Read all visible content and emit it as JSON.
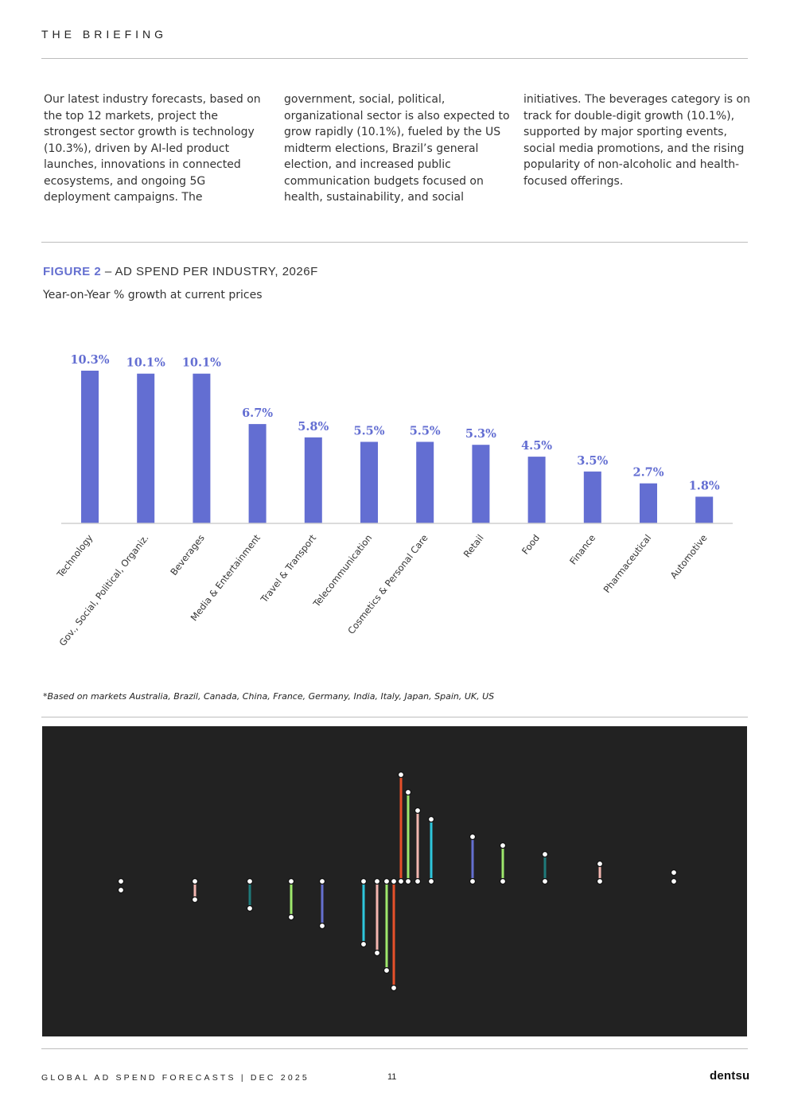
{
  "header": {
    "title": "THE BRIEFING"
  },
  "body_text": {
    "col1": "Our latest industry forecasts, based on the top 12 markets, project the strongest sector growth is technology (10.3%), driven by AI-led product launches, innovations in connected ecosystems, and ongoing 5G deployment campaigns. The",
    "col2": "government, social, political, organizational sector is also expected to grow rapidly (10.1%), fueled by the US midterm elections, Brazil’s general election, and increased public communication budgets focused on health, sustainability, and social",
    "col3": "initiatives. The beverages category is on track for double-digit growth (10.1%), supported by major sporting events, social media promotions, and the rising popularity of non-alcoholic and health-focused offerings."
  },
  "figure": {
    "label": "FIGURE 2",
    "title_rest": " – AD SPEND PER INDUSTRY, 2026F",
    "subtitle": "Year-on-Year % growth at current prices",
    "footnote": "*Based on markets Australia, Brazil, Canada, China, France, Germany, India, Italy, Japan, Spain, UK, US"
  },
  "chart_data": {
    "type": "bar",
    "title": "AD SPEND PER INDUSTRY, 2026F",
    "subtitle": "Year-on-Year % growth at current prices",
    "categories": [
      "Technology",
      "Gov., Social, Political, Organiz.",
      "Beverages",
      "Media & Entertainment",
      "Travel & Transport",
      "Telecommunication",
      "Cosmetics & Personal Care",
      "Retail",
      "Food",
      "Finance",
      "Pharmaceutical",
      "Automotive"
    ],
    "values": [
      10.3,
      10.1,
      10.1,
      6.7,
      5.8,
      5.5,
      5.5,
      5.3,
      4.5,
      3.5,
      2.7,
      1.8
    ],
    "value_labels": [
      "10.3%",
      "10.1%",
      "10.1%",
      "6.7%",
      "5.8%",
      "5.5%",
      "5.5%",
      "5.3%",
      "4.5%",
      "3.5%",
      "2.7%",
      "1.8%"
    ],
    "ylim": [
      0,
      10.3
    ],
    "grid": false,
    "bar_color": "#636ed2"
  },
  "decoration": {
    "background": "#222222",
    "colors": [
      "#e6502a",
      "#9ee86c",
      "#f2b6b0",
      "#2ec6dc",
      "#6570d0",
      "#1f7a7a"
    ]
  },
  "footer": {
    "text": "GLOBAL AD SPEND FORECASTS | DEC 2025",
    "page_number": "11",
    "logo": "dentsu"
  }
}
